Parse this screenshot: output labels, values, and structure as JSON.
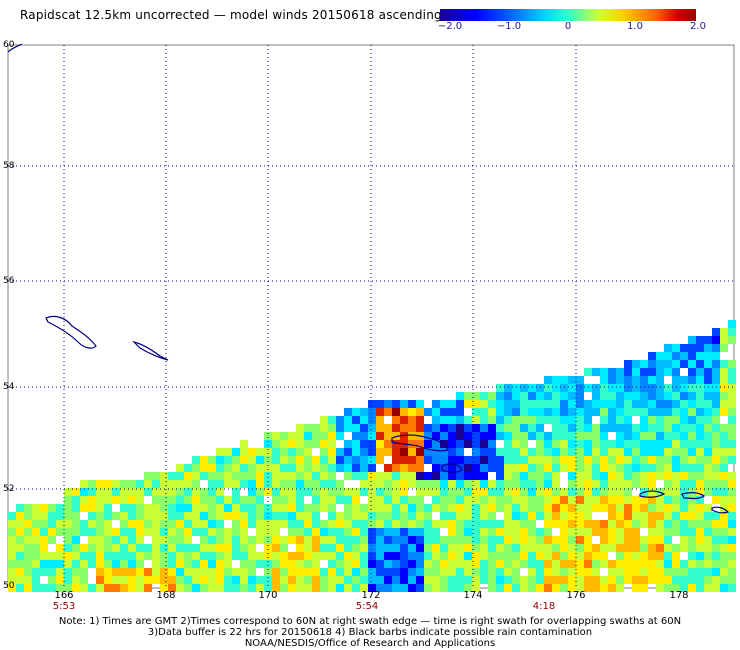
{
  "title": "Rapidscat 12.5km uncorrected — model winds 20150618 ascending",
  "colorbar": {
    "labels": [
      "−2.0",
      "−1.0",
      "0",
      "1.0",
      "2.0"
    ],
    "range": [
      -2.0,
      2.0
    ]
  },
  "map": {
    "lat_labels": [
      "60",
      "58",
      "56",
      "54",
      "52",
      "50"
    ],
    "lon_labels": [
      "166",
      "168",
      "170",
      "172",
      "174",
      "176",
      "178"
    ],
    "lat_range": [
      50,
      60
    ],
    "lon_range": [
      165,
      179
    ],
    "grid": "dotted",
    "time_labels": [
      "5:53",
      "5:54",
      "4:18"
    ]
  },
  "notes": {
    "line1": "Note: 1) Times are GMT 2)Times correspond to 60N at right swath edge — time is right swath for overlapping swaths at 60N",
    "line2": "3)Data buffer is 22 hrs for 20150618 4) Black barbs indicate possible rain contamination",
    "line3": "NOAA/NESDIS/Office of Research and Applications"
  },
  "colors": {
    "coast": "#000080",
    "grid": "#000080",
    "time_label": "#8b0000"
  }
}
